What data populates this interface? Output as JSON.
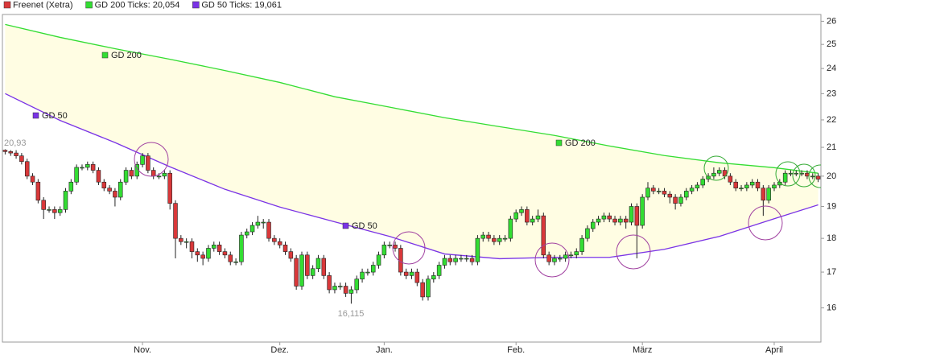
{
  "chart_data": {
    "type": "candlestick",
    "log_scale": true,
    "ylim": [
      15.1,
      26.3
    ],
    "yticks": [
      16,
      17,
      18,
      19,
      20,
      21,
      22,
      23,
      24,
      25,
      26
    ],
    "categories": [
      null,
      null,
      null,
      null,
      null,
      null,
      null,
      null,
      null,
      null,
      null,
      null,
      null,
      null,
      null,
      null,
      null,
      null,
      null,
      null,
      null,
      null,
      null,
      null,
      null,
      "Nov.",
      null,
      null,
      null,
      null,
      null,
      null,
      null,
      null,
      null,
      null,
      null,
      null,
      null,
      null,
      null,
      null,
      null,
      null,
      null,
      null,
      null,
      null,
      null,
      null,
      "Dez.",
      null,
      null,
      null,
      null,
      null,
      null,
      null,
      null,
      null,
      null,
      null,
      null,
      null,
      null,
      null,
      null,
      null,
      null,
      "Jan.",
      null,
      null,
      null,
      null,
      null,
      null,
      null,
      null,
      null,
      null,
      null,
      null,
      null,
      null,
      null,
      null,
      null,
      null,
      null,
      null,
      null,
      null,
      null,
      "Feb.",
      null,
      null,
      null,
      null,
      null,
      null,
      null,
      null,
      null,
      null,
      null,
      null,
      null,
      null,
      null,
      null,
      null,
      null,
      null,
      null,
      null,
      null,
      "März",
      null,
      null,
      null,
      null,
      null,
      null,
      null,
      null,
      null,
      null,
      null,
      null,
      null,
      null,
      null,
      null,
      null,
      null,
      null,
      null,
      null,
      null,
      null,
      "April",
      null,
      null,
      null,
      null,
      null,
      null,
      null,
      null
    ],
    "series": [
      {
        "name": "Freenet (Xetra)",
        "color": "#d9383a",
        "up_color": "#33dd33",
        "down_color": "#d9383a",
        "open": [
          20.9,
          20.85,
          20.8,
          20.7,
          20.5,
          20.0,
          19.8,
          19.2,
          18.9,
          18.9,
          18.8,
          18.9,
          19.5,
          19.8,
          20.3,
          20.3,
          20.4,
          20.2,
          19.8,
          19.6,
          19.5,
          19.3,
          19.8,
          20.2,
          20.0,
          20.4,
          20.7,
          20.2,
          20.0,
          20.0,
          20.1,
          19.1,
          18.0,
          17.9,
          17.9,
          17.6,
          17.5,
          17.4,
          17.7,
          17.8,
          17.6,
          17.5,
          17.3,
          17.3,
          18.1,
          18.2,
          18.4,
          18.5,
          18.5,
          18.0,
          17.9,
          17.8,
          17.6,
          17.4,
          16.6,
          17.5,
          16.9,
          17.1,
          17.4,
          16.9,
          16.5,
          16.6,
          16.6,
          16.4,
          16.5,
          16.8,
          17.0,
          17.0,
          17.2,
          17.5,
          17.8,
          17.8,
          17.7,
          17.0,
          16.9,
          17.0,
          16.7,
          16.3,
          16.8,
          16.9,
          17.2,
          17.4,
          17.3,
          17.4,
          17.4,
          17.4,
          17.3,
          18.0,
          18.1,
          18.0,
          17.9,
          18.0,
          18.0,
          18.6,
          18.8,
          18.9,
          18.5,
          18.6,
          18.7,
          17.5,
          17.3,
          17.4,
          17.4,
          17.5,
          17.5,
          17.6,
          18.0,
          18.3,
          18.5,
          18.6,
          18.7,
          18.6,
          18.5,
          18.6,
          18.5,
          19.0,
          18.4,
          19.3,
          19.6,
          19.5,
          19.5,
          19.4,
          19.3,
          19.1,
          19.3,
          19.5,
          19.6,
          19.7,
          19.9,
          20.0,
          20.1,
          20.2,
          20.0,
          19.8,
          19.6,
          19.6,
          19.7,
          19.8,
          19.6,
          19.2,
          19.6,
          19.7,
          19.8,
          20.1,
          20.1,
          20.1,
          20.1,
          20.0,
          20.0
        ],
        "high": [
          20.93,
          20.9,
          20.9,
          20.8,
          20.6,
          20.1,
          19.9,
          19.3,
          19.0,
          19.0,
          19.0,
          19.6,
          19.9,
          20.4,
          20.4,
          20.5,
          20.5,
          20.3,
          19.9,
          19.7,
          19.6,
          19.9,
          20.3,
          20.3,
          20.5,
          20.8,
          20.8,
          20.3,
          20.1,
          20.2,
          20.2,
          19.2,
          18.1,
          18.0,
          18.0,
          17.7,
          17.6,
          17.8,
          17.9,
          17.9,
          17.7,
          17.6,
          17.4,
          18.2,
          18.3,
          18.5,
          18.7,
          18.6,
          18.6,
          18.1,
          18.0,
          17.9,
          17.7,
          17.5,
          17.6,
          17.6,
          17.2,
          17.5,
          17.5,
          17.0,
          16.7,
          16.7,
          16.7,
          16.6,
          16.9,
          17.1,
          17.1,
          17.3,
          17.6,
          17.9,
          17.9,
          17.9,
          17.8,
          17.1,
          17.1,
          17.1,
          16.8,
          16.9,
          17.0,
          17.3,
          17.5,
          17.5,
          17.5,
          17.5,
          17.5,
          17.5,
          18.1,
          18.2,
          18.2,
          18.1,
          18.1,
          18.1,
          18.7,
          18.9,
          19.0,
          19.0,
          18.7,
          18.9,
          18.8,
          17.6,
          17.5,
          17.5,
          17.6,
          17.6,
          17.7,
          18.1,
          18.4,
          18.6,
          18.7,
          18.8,
          18.8,
          18.7,
          18.7,
          18.7,
          19.1,
          19.1,
          19.4,
          19.8,
          19.7,
          19.6,
          19.6,
          19.5,
          19.4,
          19.4,
          19.6,
          19.7,
          19.8,
          20.0,
          20.1,
          20.3,
          20.3,
          20.3,
          20.1,
          19.9,
          19.7,
          19.8,
          19.9,
          19.9,
          19.7,
          19.7,
          19.8,
          19.9,
          20.2,
          20.2,
          20.2,
          20.2,
          20.2,
          20.1,
          20.1
        ],
        "low": [
          20.75,
          20.7,
          20.6,
          20.4,
          19.9,
          19.7,
          19.1,
          18.6,
          18.8,
          18.6,
          18.7,
          18.8,
          19.4,
          19.7,
          20.2,
          20.2,
          20.1,
          19.7,
          19.5,
          19.4,
          19.0,
          19.2,
          19.7,
          19.9,
          19.9,
          20.3,
          20.1,
          19.9,
          19.9,
          19.9,
          18.9,
          17.4,
          17.8,
          17.7,
          17.4,
          17.3,
          17.2,
          17.3,
          17.6,
          17.5,
          17.4,
          17.2,
          17.2,
          17.2,
          18.0,
          18.1,
          18.3,
          18.3,
          17.9,
          17.8,
          17.7,
          17.5,
          17.3,
          16.5,
          16.5,
          16.8,
          16.8,
          17.0,
          16.8,
          16.4,
          16.4,
          16.5,
          16.3,
          16.115,
          16.4,
          16.7,
          16.9,
          16.9,
          17.1,
          17.4,
          17.7,
          17.6,
          16.9,
          16.8,
          16.8,
          16.6,
          16.2,
          16.2,
          16.7,
          16.8,
          17.1,
          17.2,
          17.2,
          17.3,
          17.3,
          17.2,
          17.2,
          17.9,
          17.9,
          17.8,
          17.8,
          17.9,
          17.9,
          18.5,
          18.7,
          18.4,
          18.4,
          18.5,
          17.4,
          17.2,
          17.2,
          17.3,
          17.3,
          17.4,
          17.4,
          17.5,
          17.9,
          18.2,
          18.4,
          18.5,
          18.5,
          18.4,
          18.4,
          18.3,
          18.4,
          17.4,
          18.3,
          19.2,
          19.4,
          19.4,
          19.3,
          19.1,
          18.9,
          19.0,
          19.2,
          19.4,
          19.5,
          19.6,
          19.8,
          19.9,
          20.0,
          19.9,
          19.7,
          19.5,
          19.5,
          19.5,
          19.6,
          19.5,
          18.7,
          19.1,
          19.5,
          19.6,
          19.7,
          20.0,
          20.0,
          20.0,
          19.9,
          19.9,
          19.8
        ],
        "close": [
          20.85,
          20.8,
          20.7,
          20.5,
          20.0,
          19.8,
          19.2,
          18.9,
          18.9,
          18.8,
          18.9,
          19.5,
          19.8,
          20.3,
          20.3,
          20.4,
          20.2,
          19.8,
          19.6,
          19.5,
          19.3,
          19.8,
          20.2,
          20.0,
          20.4,
          20.7,
          20.2,
          20.0,
          20.0,
          20.1,
          19.1,
          18.0,
          17.9,
          17.9,
          17.6,
          17.5,
          17.4,
          17.7,
          17.8,
          17.6,
          17.5,
          17.3,
          17.3,
          18.1,
          18.2,
          18.4,
          18.5,
          18.5,
          18.0,
          17.9,
          17.8,
          17.6,
          17.4,
          16.6,
          17.5,
          16.9,
          17.1,
          17.4,
          16.9,
          16.5,
          16.6,
          16.6,
          16.4,
          16.5,
          16.8,
          17.0,
          17.0,
          17.2,
          17.5,
          17.8,
          17.8,
          17.7,
          17.0,
          16.9,
          17.0,
          16.7,
          16.3,
          16.8,
          16.9,
          17.2,
          17.4,
          17.3,
          17.4,
          17.4,
          17.4,
          17.3,
          18.0,
          18.1,
          18.0,
          17.9,
          18.0,
          18.0,
          18.6,
          18.8,
          18.9,
          18.5,
          18.6,
          18.7,
          17.5,
          17.3,
          17.4,
          17.4,
          17.5,
          17.5,
          17.6,
          18.0,
          18.3,
          18.5,
          18.6,
          18.7,
          18.6,
          18.5,
          18.6,
          18.5,
          19.0,
          18.4,
          19.3,
          19.6,
          19.5,
          19.5,
          19.4,
          19.3,
          19.1,
          19.3,
          19.5,
          19.6,
          19.7,
          19.9,
          20.0,
          20.1,
          20.2,
          20.0,
          19.8,
          19.6,
          19.6,
          19.7,
          19.8,
          19.6,
          19.2,
          19.6,
          19.7,
          19.8,
          20.1,
          20.1,
          20.1,
          20.1,
          20.0,
          20.0,
          19.9
        ]
      },
      {
        "name": "GD 200 Ticks: 20,054",
        "color": "#33dd33",
        "x": [
          0,
          10,
          20,
          30,
          40,
          50,
          60,
          70,
          80,
          90,
          100,
          110,
          120,
          130,
          140,
          148
        ],
        "values": [
          25.86,
          25.3,
          24.82,
          24.38,
          23.92,
          23.44,
          22.88,
          22.48,
          22.08,
          21.75,
          21.43,
          21.05,
          20.71,
          20.46,
          20.29,
          20.1
        ]
      },
      {
        "name": "GD 50 Ticks: 19,061",
        "color": "#7a33e6",
        "x": [
          0,
          10,
          20,
          30,
          40,
          50,
          60,
          70,
          80,
          90,
          100,
          110,
          120,
          130,
          140,
          148
        ],
        "values": [
          23.0,
          21.98,
          21.17,
          20.32,
          19.56,
          18.98,
          18.51,
          18.06,
          17.53,
          17.39,
          17.43,
          17.43,
          17.67,
          18.06,
          18.61,
          19.05
        ]
      }
    ],
    "fill_color": "#fffde3",
    "annotations": [
      "GD 200",
      "GD 200",
      "GD 50",
      "GD 50",
      "20,93",
      "16,115"
    ]
  }
}
